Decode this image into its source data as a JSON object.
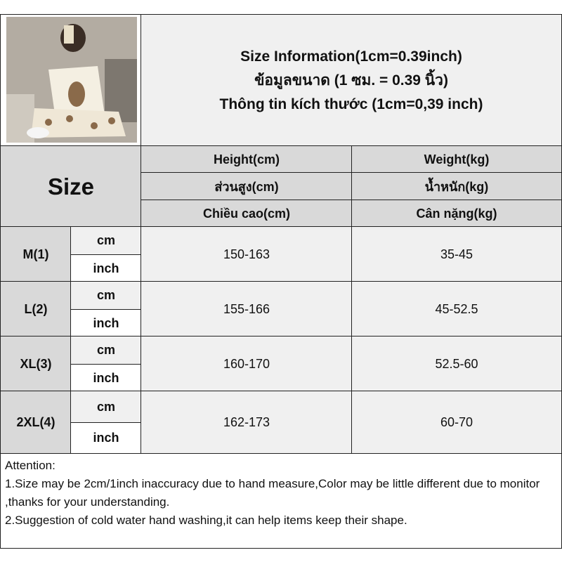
{
  "header": {
    "title_lines": [
      "Size Information(1cm=0.39inch)",
      "ข้อมูลขนาด (1 ซม. = 0.39 นิ้ว)",
      "Thông tin kích thước (1cm=0,39 inch)"
    ]
  },
  "table": {
    "size_label": "Size",
    "height_headers": [
      "Height(cm)",
      "ส่วนสูง(cm)",
      "Chiều cao(cm)"
    ],
    "weight_headers": [
      "Weight(kg)",
      "น้ำหนัก(kg)",
      "Cân nặng(kg)"
    ],
    "unit_cm": "cm",
    "unit_inch": "inch",
    "rows": [
      {
        "size": "M(1)",
        "height": "150-163",
        "weight": "35-45"
      },
      {
        "size": "L(2)",
        "height": "155-166",
        "weight": "45-52.5"
      },
      {
        "size": "XL(3)",
        "height": "160-170",
        "weight": "52.5-60"
      },
      {
        "size": "2XL(4)",
        "height": "162-173",
        "weight": "60-70"
      }
    ]
  },
  "notes": {
    "heading": "Attention:",
    "line1": "1.Size may be 2cm/1inch inaccuracy due to hand measure,Color may be little different due to monitor ,thanks for your understanding.",
    "line2": "2.Suggestion of cold water hand washing,it can help items keep their shape."
  }
}
